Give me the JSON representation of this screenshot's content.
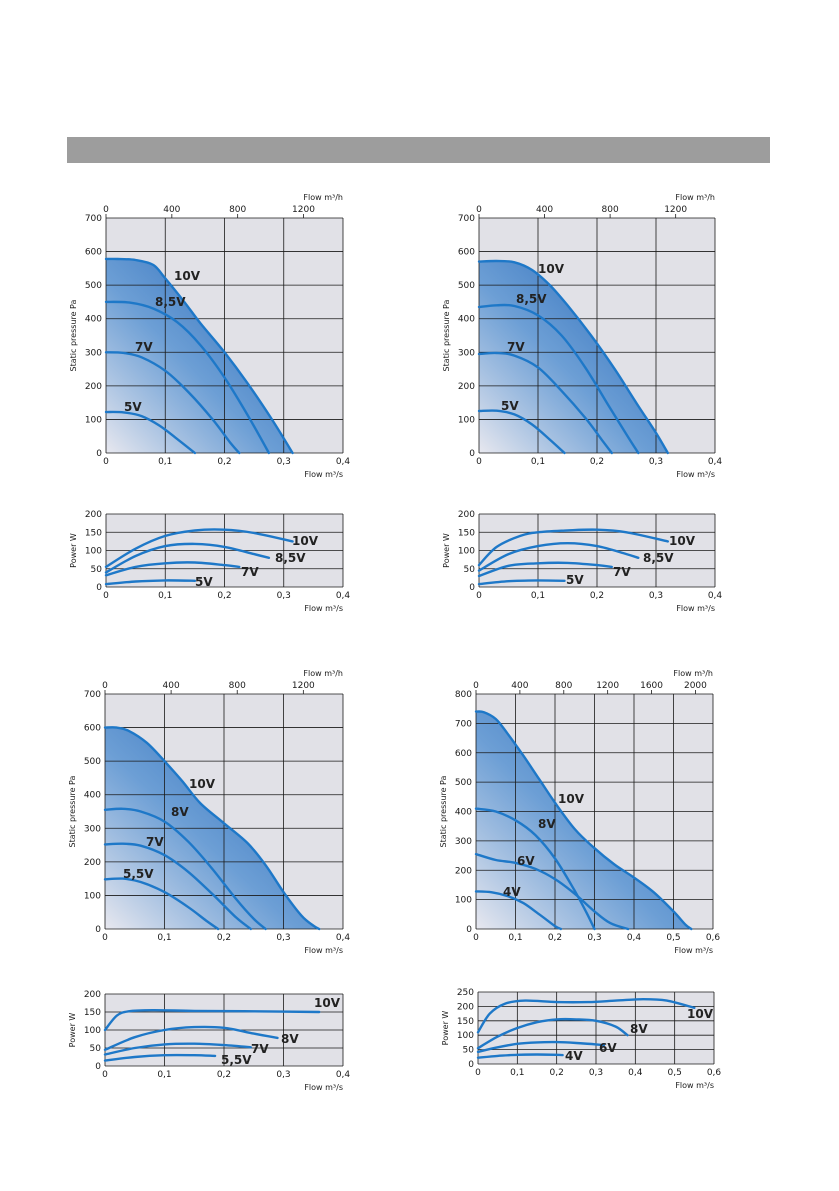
{
  "colors": {
    "band": "#9d9d9d",
    "plot_bg": "#e1e1e7",
    "curve": "#1e78c8",
    "fill_dark": "#1c5fb3"
  },
  "chart_data": [
    {
      "id": "A-pressure",
      "type": "line",
      "xlabel": "Flow m³/s",
      "x2label": "Flow m³/h",
      "ylabel": "Static pressure Pa",
      "xlim": [
        0,
        0.4
      ],
      "ylim": [
        0,
        700
      ],
      "x2lim": [
        0,
        1440
      ],
      "xticks": [
        "0",
        "0,1",
        "0,2",
        "0,3",
        "0,4"
      ],
      "yticks": [
        "0",
        "100",
        "200",
        "300",
        "400",
        "500",
        "600",
        "700"
      ],
      "x2ticks": [
        "0",
        "400",
        "800",
        "1200"
      ],
      "grid": true,
      "series": [
        {
          "name": "10V",
          "x": [
            0,
            0.02,
            0.05,
            0.08,
            0.1,
            0.13,
            0.16,
            0.2,
            0.24,
            0.28,
            0.315
          ],
          "y": [
            578,
            578,
            575,
            560,
            520,
            455,
            385,
            300,
            205,
            100,
            0
          ]
        },
        {
          "name": "8,5V",
          "x": [
            0,
            0.04,
            0.08,
            0.12,
            0.16,
            0.2,
            0.24,
            0.275
          ],
          "y": [
            450,
            448,
            430,
            390,
            320,
            225,
            110,
            0
          ]
        },
        {
          "name": "7V",
          "x": [
            0,
            0.03,
            0.06,
            0.1,
            0.14,
            0.18,
            0.21,
            0.225
          ],
          "y": [
            300,
            298,
            285,
            245,
            180,
            100,
            30,
            0
          ]
        },
        {
          "name": "5V",
          "x": [
            0,
            0.03,
            0.06,
            0.09,
            0.12,
            0.15
          ],
          "y": [
            122,
            121,
            110,
            82,
            42,
            0
          ]
        }
      ]
    },
    {
      "id": "A-power",
      "type": "line",
      "xlabel": "Flow m³/s",
      "ylabel": "Power W",
      "xlim": [
        0,
        0.4
      ],
      "ylim": [
        0,
        200
      ],
      "xticks": [
        "0",
        "0,1",
        "0,2",
        "0,3",
        "0,4"
      ],
      "yticks": [
        "0",
        "50",
        "100",
        "150",
        "200"
      ],
      "grid": true,
      "series": [
        {
          "name": "10V",
          "x": [
            0,
            0.05,
            0.1,
            0.15,
            0.2,
            0.25,
            0.315
          ],
          "y": [
            55,
            105,
            140,
            155,
            157,
            148,
            125
          ]
        },
        {
          "name": "8,5V",
          "x": [
            0,
            0.05,
            0.1,
            0.15,
            0.2,
            0.25,
            0.275
          ],
          "y": [
            40,
            85,
            112,
            118,
            110,
            90,
            80
          ]
        },
        {
          "name": "7V",
          "x": [
            0,
            0.05,
            0.1,
            0.15,
            0.2,
            0.225
          ],
          "y": [
            32,
            55,
            65,
            67,
            60,
            55
          ]
        },
        {
          "name": "5V",
          "x": [
            0,
            0.05,
            0.1,
            0.15
          ],
          "y": [
            8,
            15,
            18,
            17
          ]
        }
      ]
    },
    {
      "id": "B-pressure",
      "type": "line",
      "xlabel": "Flow m³/s",
      "x2label": "Flow m³/h",
      "ylabel": "Static pressure Pa",
      "xlim": [
        0,
        0.4
      ],
      "ylim": [
        0,
        700
      ],
      "x2lim": [
        0,
        1440
      ],
      "xticks": [
        "0",
        "0,1",
        "0,2",
        "0,3",
        "0,4"
      ],
      "yticks": [
        "0",
        "100",
        "200",
        "300",
        "400",
        "500",
        "600",
        "700"
      ],
      "x2ticks": [
        "0",
        "400",
        "800",
        "1200"
      ],
      "grid": true,
      "series": [
        {
          "name": "10V",
          "x": [
            0,
            0.03,
            0.06,
            0.09,
            0.12,
            0.15,
            0.19,
            0.23,
            0.27,
            0.3,
            0.32
          ],
          "y": [
            570,
            572,
            568,
            545,
            500,
            440,
            350,
            250,
            140,
            60,
            0
          ]
        },
        {
          "name": "8,5V",
          "x": [
            0,
            0.03,
            0.06,
            0.1,
            0.14,
            0.18,
            0.22,
            0.25,
            0.27
          ],
          "y": [
            435,
            440,
            438,
            410,
            350,
            255,
            140,
            55,
            0
          ]
        },
        {
          "name": "7V",
          "x": [
            0,
            0.03,
            0.06,
            0.1,
            0.14,
            0.18,
            0.21,
            0.225
          ],
          "y": [
            295,
            298,
            290,
            255,
            185,
            105,
            35,
            0
          ]
        },
        {
          "name": "5V",
          "x": [
            0,
            0.03,
            0.06,
            0.09,
            0.12,
            0.145
          ],
          "y": [
            125,
            126,
            115,
            85,
            40,
            0
          ]
        }
      ]
    },
    {
      "id": "B-power",
      "type": "line",
      "xlabel": "Flow m³/s",
      "ylabel": "Power W",
      "xlim": [
        0,
        0.4
      ],
      "ylim": [
        0,
        200
      ],
      "xticks": [
        "0",
        "0,1",
        "0,2",
        "0,3",
        "0,4"
      ],
      "yticks": [
        "0",
        "50",
        "100",
        "150",
        "200"
      ],
      "grid": true,
      "series": [
        {
          "name": "10V",
          "x": [
            0,
            0.03,
            0.07,
            0.1,
            0.15,
            0.2,
            0.25,
            0.32
          ],
          "y": [
            60,
            110,
            140,
            150,
            155,
            157,
            150,
            125
          ]
        },
        {
          "name": "8,5V",
          "x": [
            0,
            0.05,
            0.1,
            0.15,
            0.2,
            0.25,
            0.27
          ],
          "y": [
            45,
            90,
            112,
            120,
            112,
            90,
            80
          ]
        },
        {
          "name": "7V",
          "x": [
            0,
            0.05,
            0.1,
            0.15,
            0.2,
            0.225
          ],
          "y": [
            30,
            58,
            65,
            66,
            60,
            55
          ]
        },
        {
          "name": "5V",
          "x": [
            0,
            0.05,
            0.1,
            0.145
          ],
          "y": [
            8,
            16,
            18,
            17
          ]
        }
      ]
    },
    {
      "id": "C-pressure",
      "type": "line",
      "xlabel": "Flow m³/s",
      "x2label": "Flow m³/h",
      "ylabel": "Static pressure Pa",
      "xlim": [
        0,
        0.4
      ],
      "ylim": [
        0,
        700
      ],
      "x2lim": [
        0,
        1440
      ],
      "xticks": [
        "0",
        "0,1",
        "0,2",
        "0,3",
        "0,4"
      ],
      "yticks": [
        "0",
        "100",
        "200",
        "300",
        "400",
        "500",
        "600",
        "700"
      ],
      "x2ticks": [
        "0",
        "400",
        "800",
        "1200"
      ],
      "grid": true,
      "series": [
        {
          "name": "10V",
          "x": [
            0,
            0.02,
            0.04,
            0.07,
            0.1,
            0.13,
            0.16,
            0.2,
            0.24,
            0.27,
            0.3,
            0.33,
            0.35,
            0.36
          ],
          "y": [
            600,
            600,
            590,
            555,
            500,
            440,
            375,
            315,
            255,
            190,
            110,
            40,
            10,
            0
          ]
        },
        {
          "name": "8V",
          "x": [
            0,
            0.03,
            0.06,
            0.1,
            0.14,
            0.18,
            0.22,
            0.25,
            0.27
          ],
          "y": [
            355,
            358,
            350,
            320,
            260,
            180,
            90,
            30,
            0
          ]
        },
        {
          "name": "7V",
          "x": [
            0,
            0.03,
            0.06,
            0.1,
            0.14,
            0.18,
            0.22,
            0.245
          ],
          "y": [
            252,
            254,
            248,
            220,
            170,
            105,
            35,
            0
          ]
        },
        {
          "name": "5,5V",
          "x": [
            0,
            0.03,
            0.06,
            0.1,
            0.14,
            0.17,
            0.19
          ],
          "y": [
            148,
            150,
            140,
            110,
            65,
            25,
            0
          ]
        }
      ]
    },
    {
      "id": "C-power",
      "type": "line",
      "xlabel": "Flow m³/s",
      "ylabel": "Power W",
      "xlim": [
        0,
        0.4
      ],
      "ylim": [
        0,
        200
      ],
      "xticks": [
        "0",
        "0,1",
        "0,2",
        "0,3",
        "0,4"
      ],
      "yticks": [
        "0",
        "50",
        "100",
        "150",
        "200"
      ],
      "grid": true,
      "series": [
        {
          "name": "10V",
          "x": [
            0,
            0.02,
            0.04,
            0.08,
            0.15,
            0.25,
            0.36
          ],
          "y": [
            100,
            140,
            152,
            155,
            153,
            152,
            150
          ]
        },
        {
          "name": "8V",
          "x": [
            0,
            0.05,
            0.1,
            0.15,
            0.2,
            0.25,
            0.29
          ],
          "y": [
            45,
            80,
            100,
            108,
            106,
            90,
            78
          ]
        },
        {
          "name": "7V",
          "x": [
            0,
            0.05,
            0.1,
            0.15,
            0.2,
            0.245
          ],
          "y": [
            32,
            50,
            60,
            62,
            58,
            52
          ]
        },
        {
          "name": "5,5V",
          "x": [
            0,
            0.05,
            0.1,
            0.15,
            0.185
          ],
          "y": [
            15,
            25,
            30,
            30,
            28
          ]
        }
      ]
    },
    {
      "id": "D-pressure",
      "type": "line",
      "xlabel": "Flow m³/s",
      "x2label": "Flow m³/h",
      "ylabel": "Static pressure Pa",
      "xlim": [
        0,
        0.6
      ],
      "ylim": [
        0,
        800
      ],
      "x2lim": [
        0,
        2160
      ],
      "xticks": [
        "0",
        "0,1",
        "0,2",
        "0,3",
        "0,4",
        "0,5",
        "0,6"
      ],
      "yticks": [
        "0",
        "100",
        "200",
        "300",
        "400",
        "500",
        "600",
        "700",
        "800"
      ],
      "x2ticks": [
        "0",
        "400",
        "800",
        "1200",
        "1600",
        "2000"
      ],
      "grid": true,
      "series": [
        {
          "name": "10V",
          "x": [
            0,
            0.02,
            0.05,
            0.08,
            0.12,
            0.16,
            0.2,
            0.25,
            0.3,
            0.35,
            0.4,
            0.45,
            0.5,
            0.53,
            0.545
          ],
          "y": [
            740,
            738,
            715,
            665,
            590,
            510,
            430,
            340,
            275,
            220,
            175,
            125,
            60,
            15,
            0
          ]
        },
        {
          "name": "8V",
          "x": [
            0,
            0.05,
            0.1,
            0.15,
            0.2,
            0.25,
            0.28,
            0.3
          ],
          "y": [
            410,
            400,
            370,
            320,
            240,
            130,
            55,
            0
          ]
        },
        {
          "name": "6V",
          "x": [
            0,
            0.05,
            0.1,
            0.15,
            0.2,
            0.25,
            0.3,
            0.34,
            0.385
          ],
          "y": [
            255,
            235,
            225,
            205,
            170,
            120,
            60,
            20,
            0
          ]
        },
        {
          "name": "4V",
          "x": [
            0,
            0.04,
            0.08,
            0.12,
            0.16,
            0.2,
            0.215
          ],
          "y": [
            128,
            125,
            112,
            88,
            50,
            10,
            0
          ]
        }
      ]
    },
    {
      "id": "D-power",
      "type": "line",
      "xlabel": "Flow m³/s",
      "ylabel": "Power W",
      "xlim": [
        0,
        0.6
      ],
      "ylim": [
        0,
        250
      ],
      "xticks": [
        "0",
        "0,1",
        "0,2",
        "0,3",
        "0,4",
        "0,5",
        "0,6"
      ],
      "yticks": [
        "0",
        "50",
        "100",
        "150",
        "200",
        "250"
      ],
      "grid": true,
      "series": [
        {
          "name": "10V",
          "x": [
            0,
            0.03,
            0.07,
            0.12,
            0.2,
            0.28,
            0.35,
            0.42,
            0.48,
            0.55
          ],
          "y": [
            110,
            175,
            210,
            220,
            215,
            215,
            220,
            225,
            220,
            195
          ]
        },
        {
          "name": "8V",
          "x": [
            0,
            0.05,
            0.1,
            0.15,
            0.2,
            0.25,
            0.3,
            0.35,
            0.38
          ],
          "y": [
            55,
            95,
            125,
            145,
            155,
            155,
            150,
            130,
            100
          ]
        },
        {
          "name": "6V",
          "x": [
            0,
            0.05,
            0.1,
            0.15,
            0.2,
            0.25,
            0.3,
            0.32
          ],
          "y": [
            42,
            58,
            70,
            75,
            76,
            73,
            68,
            65
          ]
        },
        {
          "name": "4V",
          "x": [
            0,
            0.05,
            0.1,
            0.15,
            0.2,
            0.215
          ],
          "y": [
            22,
            28,
            32,
            33,
            32,
            31
          ]
        }
      ]
    }
  ]
}
